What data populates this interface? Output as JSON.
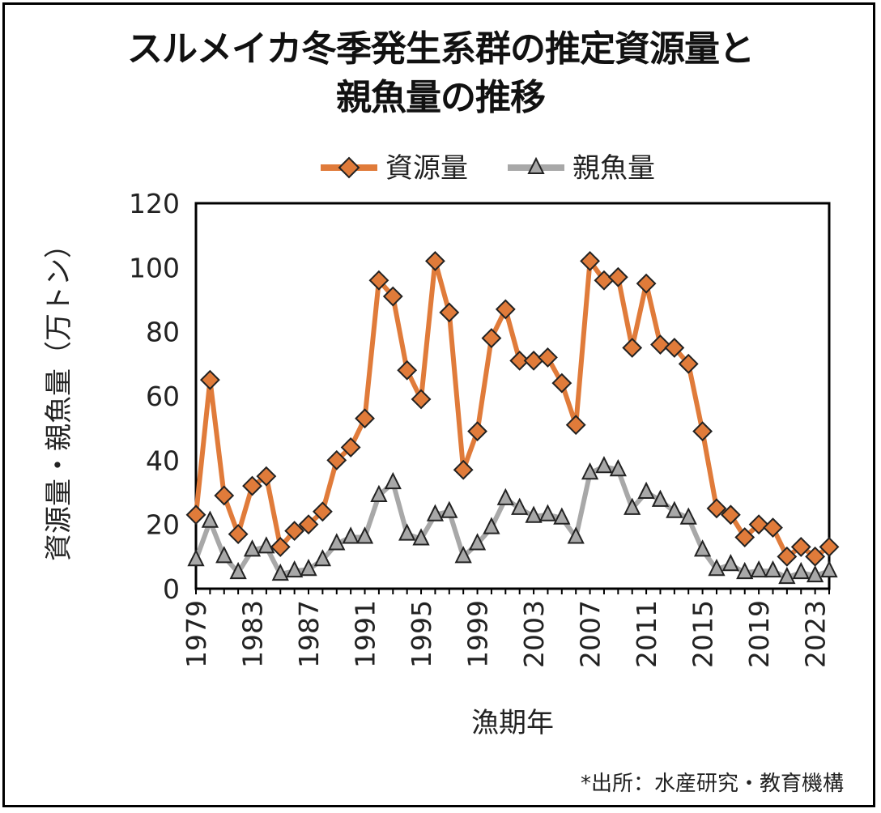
{
  "colors": {
    "resource": "#e07b3a",
    "parent": "#a8a8a8"
  },
  "chart_data": {
    "type": "line",
    "title_line1": "スルメイカ冬季発生系群の推定資源量と",
    "title_line2": "親魚量の推移",
    "xlabel": "漁期年",
    "ylabel": "資源量・親魚量（万トン）",
    "ylim": [
      0,
      120
    ],
    "yticks": [
      "0",
      "20",
      "40",
      "60",
      "80",
      "100",
      "120"
    ],
    "xticks": [
      "1979",
      "1983",
      "1987",
      "1991",
      "1995",
      "1999",
      "2003",
      "2007",
      "2011",
      "2015",
      "2019",
      "2023"
    ],
    "x": [
      1979,
      1980,
      1981,
      1982,
      1983,
      1984,
      1985,
      1986,
      1987,
      1988,
      1989,
      1990,
      1991,
      1992,
      1993,
      1994,
      1995,
      1996,
      1997,
      1998,
      1999,
      2000,
      2001,
      2002,
      2003,
      2004,
      2005,
      2006,
      2007,
      2008,
      2009,
      2010,
      2011,
      2012,
      2013,
      2014,
      2015,
      2016,
      2017,
      2018,
      2019,
      2020,
      2021,
      2022,
      2023,
      2024
    ],
    "series": [
      {
        "name": "資源量",
        "marker": "diamond",
        "values": [
          23,
          65,
          29,
          17,
          32,
          35,
          13,
          18,
          20,
          24,
          40,
          44,
          53,
          96,
          91,
          68,
          59,
          102,
          86,
          37,
          49,
          78,
          87,
          71,
          71,
          72,
          64,
          51,
          102,
          96,
          97,
          75,
          95,
          76,
          75,
          70,
          49,
          25,
          23,
          16,
          20,
          19,
          10,
          13,
          10,
          13
        ]
      },
      {
        "name": "親魚量",
        "marker": "triangle",
        "values": [
          9,
          21,
          10,
          5,
          12,
          13,
          4.5,
          5.5,
          6,
          9,
          14,
          16,
          16,
          29,
          33,
          17,
          15.5,
          23,
          24,
          10,
          14,
          19,
          28,
          25,
          22.5,
          23,
          22,
          16,
          36,
          38,
          37,
          25,
          30,
          27.5,
          24,
          22,
          12,
          6,
          7.5,
          5,
          5.5,
          5.5,
          3.5,
          5,
          4,
          5.5
        ]
      }
    ]
  },
  "source_note": "*出所：水産研究・教育機構"
}
